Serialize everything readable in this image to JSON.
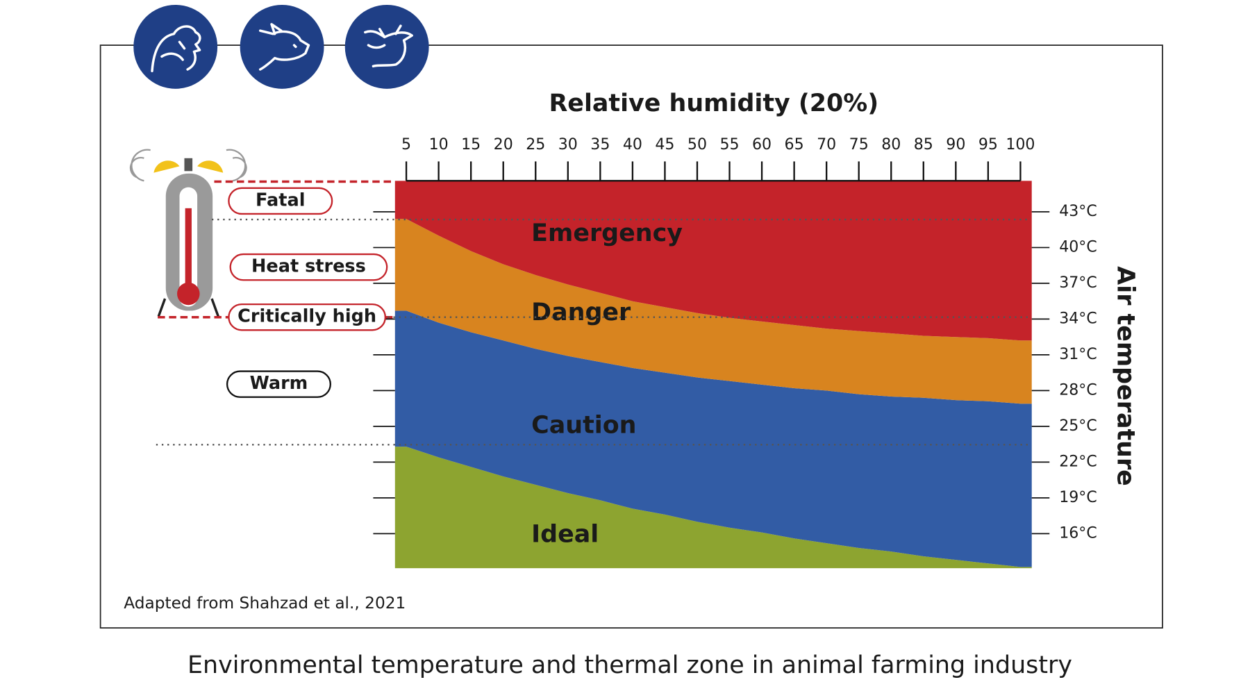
{
  "caption": "Environmental temperature and thermal zone in animal farming industry",
  "source": "Adapted from Shahzad et al., 2021",
  "stress_levels": [
    "Fatal",
    "Heat stress",
    "Critically high",
    "Warm"
  ],
  "chart_data": {
    "type": "zones",
    "x_label": "Relative humidity (20%)",
    "y_label": "Air temperature",
    "xlim": [
      3.25,
      101.75
    ],
    "ylim": [
      13.1,
      45.6
    ],
    "xticks": [
      5,
      10,
      15,
      20,
      25,
      30,
      35,
      40,
      45,
      50,
      55,
      60,
      65,
      70,
      75,
      80,
      85,
      90,
      95,
      100
    ],
    "yticks": [
      {
        "value": 16,
        "label": "16°C"
      },
      {
        "value": 19,
        "label": "19°C"
      },
      {
        "value": 22,
        "label": "22°C"
      },
      {
        "value": 25,
        "label": "25°C"
      },
      {
        "value": 28,
        "label": "28°C"
      },
      {
        "value": 31,
        "label": "31°C"
      },
      {
        "value": 34,
        "label": "34°C"
      },
      {
        "value": 37,
        "label": "37°C"
      },
      {
        "value": 40,
        "label": "40°C"
      },
      {
        "value": 43,
        "label": "43°C"
      }
    ],
    "x": [
      5,
      10,
      15,
      20,
      25,
      30,
      35,
      40,
      45,
      50,
      55,
      60,
      65,
      70,
      75,
      80,
      85,
      90,
      95,
      100
    ],
    "series": [
      {
        "name": "Ideal",
        "color": "#8da430",
        "label_color": "#d8e4a8"
      },
      {
        "name": "Caution",
        "color": "#325ca5",
        "label_color": "#b9c6ec",
        "values": [
          23.3,
          22.4,
          21.6,
          20.8,
          20.1,
          19.4,
          18.8,
          18.1,
          17.6,
          17.0,
          16.5,
          16.1,
          15.6,
          15.2,
          14.8,
          14.5,
          14.1,
          13.8,
          13.5,
          13.2
        ]
      },
      {
        "name": "Danger",
        "color": "#d8841f",
        "label_color": "#f7d5ab",
        "values": [
          34.7,
          33.7,
          32.9,
          32.2,
          31.5,
          30.9,
          30.4,
          29.9,
          29.5,
          29.1,
          28.8,
          28.5,
          28.2,
          28.0,
          27.7,
          27.5,
          27.4,
          27.2,
          27.1,
          26.9
        ]
      },
      {
        "name": "Emergency",
        "color": "#c4232a",
        "label_color": "#f4b7a0",
        "values": [
          42.4,
          41.0,
          39.7,
          38.6,
          37.7,
          36.9,
          36.2,
          35.5,
          35.0,
          34.5,
          34.1,
          33.8,
          33.5,
          33.2,
          33.0,
          32.8,
          32.6,
          32.5,
          32.4,
          32.2
        ]
      }
    ]
  }
}
